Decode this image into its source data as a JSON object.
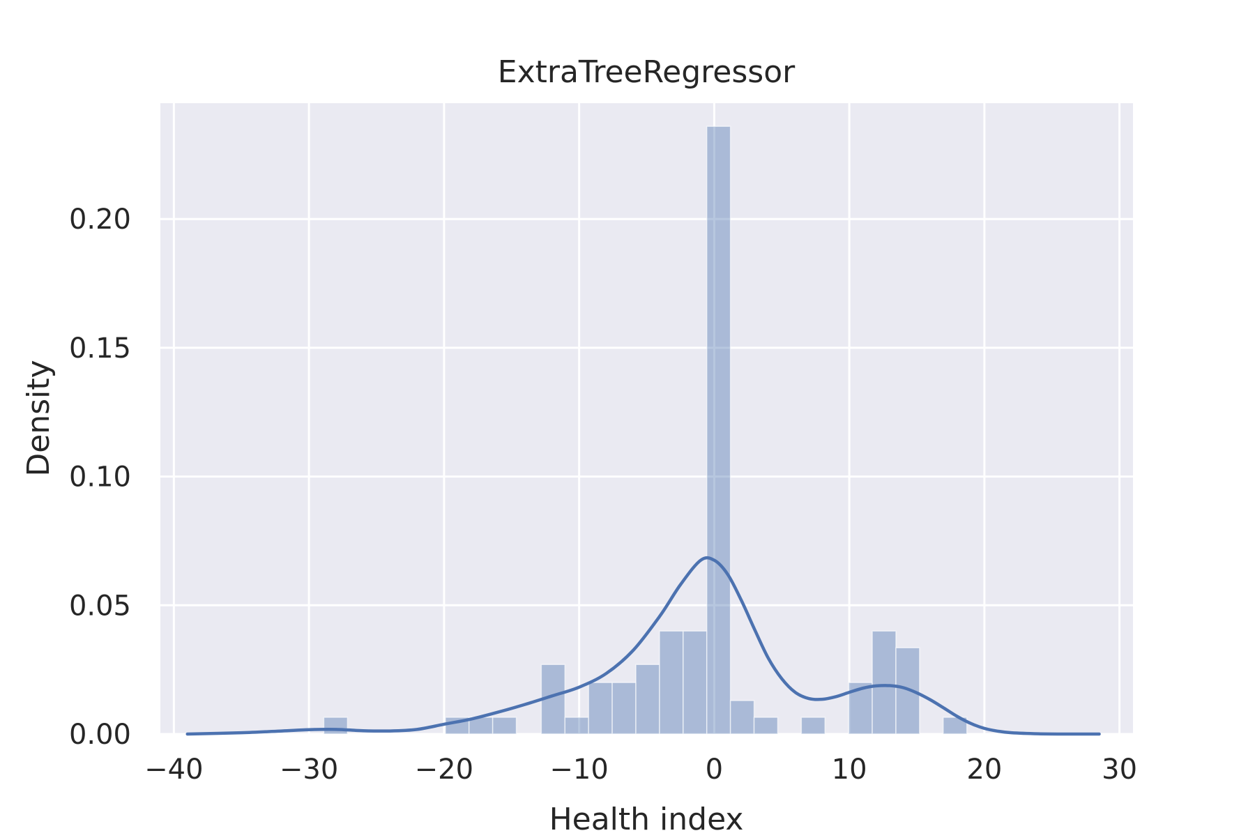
{
  "chart_data": {
    "type": "bar",
    "title": "ExtraTreeRegressor",
    "xlabel": "Health index",
    "ylabel": "Density",
    "xlim": [
      -41,
      31
    ],
    "ylim": [
      0,
      0.245
    ],
    "grid": true,
    "x_ticks": [
      -40,
      -30,
      -20,
      -10,
      0,
      10,
      20,
      30
    ],
    "x_tick_labels": [
      "−40",
      "−30",
      "−20",
      "−10",
      "0",
      "10",
      "20",
      "30"
    ],
    "y_ticks": [
      0.0,
      0.05,
      0.1,
      0.15,
      0.2
    ],
    "y_tick_labels": [
      "0.00",
      "0.05",
      "0.10",
      "0.15",
      "0.20"
    ],
    "colors": {
      "background": "#eaeaf2",
      "grid": "#ffffff",
      "bar_fill": "#4c72b0",
      "bar_fill_opacity": 0.4,
      "kde_line": "#4c72b0"
    },
    "series": [
      {
        "kind": "histogram",
        "bin_width": 1.75,
        "bars": [
          {
            "left": -28.9,
            "height": 0.0065
          },
          {
            "left": -19.9,
            "height": 0.0065
          },
          {
            "left": -18.15,
            "height": 0.0065
          },
          {
            "left": -16.4,
            "height": 0.0065
          },
          {
            "left": -12.8,
            "height": 0.027
          },
          {
            "left": -11.05,
            "height": 0.0065
          },
          {
            "left": -9.3,
            "height": 0.02
          },
          {
            "left": -7.55,
            "height": 0.02
          },
          {
            "left": -5.8,
            "height": 0.027
          },
          {
            "left": -4.05,
            "height": 0.04
          },
          {
            "left": -2.3,
            "height": 0.04
          },
          {
            "left": -0.55,
            "height": 0.236
          },
          {
            "left": 1.2,
            "height": 0.013
          },
          {
            "left": 2.95,
            "height": 0.0065
          },
          {
            "left": 6.45,
            "height": 0.0065
          },
          {
            "left": 9.95,
            "height": 0.02
          },
          {
            "left": 11.7,
            "height": 0.04
          },
          {
            "left": 13.45,
            "height": 0.0335
          },
          {
            "left": 16.95,
            "height": 0.0065
          }
        ]
      },
      {
        "kind": "kde",
        "x": [
          -39,
          -35,
          -32,
          -30,
          -28,
          -26,
          -24,
          -22,
          -20,
          -18,
          -16,
          -14,
          -12,
          -10,
          -8,
          -6,
          -4,
          -2.5,
          -1,
          0,
          1,
          2,
          3,
          4,
          5,
          6,
          7,
          8,
          9,
          10,
          11,
          12,
          13,
          14,
          15,
          16,
          17,
          18,
          19,
          20,
          21,
          22,
          24,
          26,
          28.5
        ],
        "y": [
          0.0,
          0.0005,
          0.0012,
          0.0017,
          0.0018,
          0.0013,
          0.0012,
          0.0018,
          0.0038,
          0.0058,
          0.0085,
          0.0115,
          0.0148,
          0.0182,
          0.0235,
          0.0325,
          0.046,
          0.058,
          0.0675,
          0.0675,
          0.062,
          0.052,
          0.0405,
          0.0295,
          0.0215,
          0.0162,
          0.0138,
          0.0135,
          0.0145,
          0.0162,
          0.0178,
          0.0187,
          0.0188,
          0.018,
          0.016,
          0.0133,
          0.0101,
          0.0068,
          0.0041,
          0.0022,
          0.0011,
          0.0005,
          0.0001,
          0.0,
          0.0
        ]
      }
    ]
  }
}
